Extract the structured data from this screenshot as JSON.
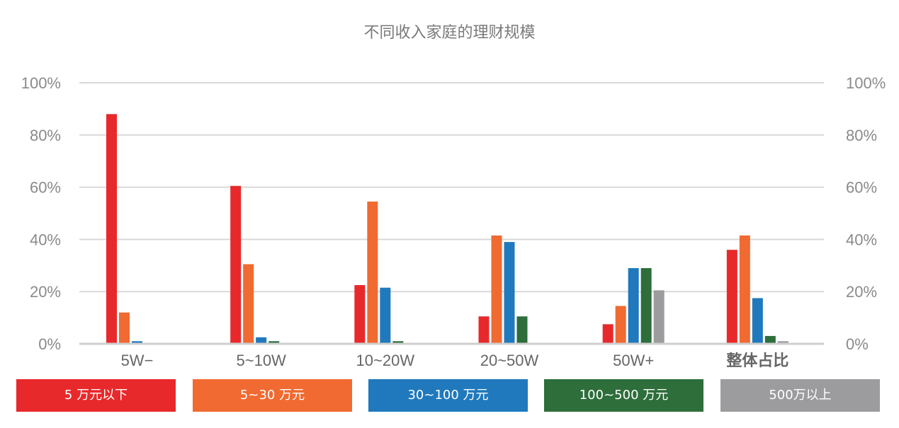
{
  "chart_data": {
    "type": "bar",
    "title": "不同收入家庭的理财规模",
    "categories": [
      "5W−",
      "5~10W",
      "10~20W",
      "20~50W",
      "50W+",
      "整体占比"
    ],
    "series": [
      {
        "name": "5 万元以下",
        "color": "#e8292b",
        "values": [
          88,
          60.5,
          22.5,
          10.5,
          7.5,
          36
        ]
      },
      {
        "name": "5~30 万元",
        "color": "#f06a31",
        "values": [
          12,
          30.5,
          54.5,
          41.5,
          14.5,
          41.5
        ]
      },
      {
        "name": "30~100 万元",
        "color": "#2079bc",
        "values": [
          1,
          2.5,
          21.5,
          39,
          29,
          17.5
        ]
      },
      {
        "name": "100~500 万元",
        "color": "#2d6e3b",
        "values": [
          0,
          1,
          1,
          10.5,
          29,
          3
        ]
      },
      {
        "name": "500万以上",
        "color": "#9c9c9e",
        "values": [
          0,
          0,
          0,
          0,
          20.5,
          1
        ]
      }
    ],
    "y_ticks": [
      "0%",
      "20%",
      "40%",
      "60%",
      "80%",
      "100%"
    ],
    "ylim": [
      0,
      100
    ],
    "grid": true,
    "secondary_axis": true,
    "legend_position": "bottom"
  }
}
